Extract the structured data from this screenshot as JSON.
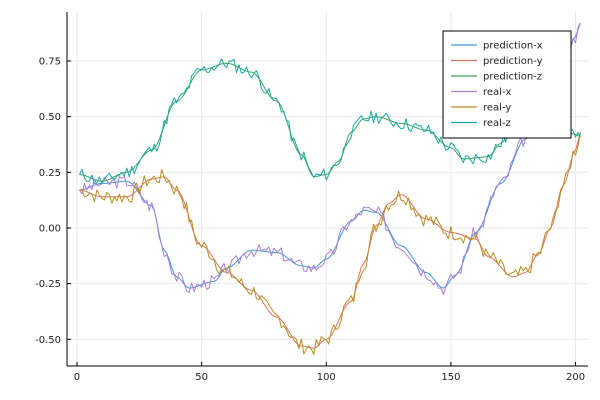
{
  "chart_data": {
    "type": "line",
    "title": "",
    "xlabel": "",
    "ylabel": "",
    "xlim": [
      -4,
      205
    ],
    "ylim": [
      -0.62,
      0.97
    ],
    "x_ticks": [
      {
        "value": 0,
        "label": "0"
      },
      {
        "value": 50,
        "label": "50"
      },
      {
        "value": 100,
        "label": "100"
      },
      {
        "value": 150,
        "label": "150"
      },
      {
        "value": 200,
        "label": "200"
      }
    ],
    "y_ticks": [
      {
        "value": -0.5,
        "label": "-0.50"
      },
      {
        "value": -0.25,
        "label": "-0.25"
      },
      {
        "value": 0.0,
        "label": "0.00"
      },
      {
        "value": 0.25,
        "label": "0.25"
      },
      {
        "value": 0.5,
        "label": "0.50"
      },
      {
        "value": 0.75,
        "label": "0.75"
      }
    ],
    "grid": true,
    "legend_position": "top-right",
    "series": [
      {
        "name": "prediction-x",
        "color": "#3a9ad9",
        "style": "smooth",
        "points": [
          [
            1,
            0.17
          ],
          [
            10,
            0.2
          ],
          [
            20,
            0.21
          ],
          [
            30,
            0.1
          ],
          [
            35,
            -0.1
          ],
          [
            40,
            -0.22
          ],
          [
            45,
            -0.27
          ],
          [
            55,
            -0.24
          ],
          [
            60,
            -0.18
          ],
          [
            70,
            -0.1
          ],
          [
            80,
            -0.11
          ],
          [
            90,
            -0.17
          ],
          [
            95,
            -0.18
          ],
          [
            100,
            -0.14
          ],
          [
            110,
            0.03
          ],
          [
            115,
            0.08
          ],
          [
            120,
            0.07
          ],
          [
            130,
            -0.08
          ],
          [
            140,
            -0.2
          ],
          [
            147,
            -0.27
          ],
          [
            152,
            -0.21
          ],
          [
            160,
            -0.02
          ],
          [
            170,
            0.2
          ],
          [
            180,
            0.4
          ],
          [
            190,
            0.58
          ],
          [
            195,
            0.72
          ],
          [
            200,
            0.86
          ],
          [
            202,
            0.92
          ]
        ]
      },
      {
        "name": "prediction-y",
        "color": "#e2725b",
        "style": "smooth",
        "points": [
          [
            1,
            0.17
          ],
          [
            10,
            0.14
          ],
          [
            20,
            0.14
          ],
          [
            30,
            0.22
          ],
          [
            35,
            0.23
          ],
          [
            40,
            0.17
          ],
          [
            50,
            -0.08
          ],
          [
            60,
            -0.2
          ],
          [
            70,
            -0.28
          ],
          [
            80,
            -0.4
          ],
          [
            90,
            -0.53
          ],
          [
            95,
            -0.54
          ],
          [
            100,
            -0.5
          ],
          [
            110,
            -0.33
          ],
          [
            115,
            -0.16
          ],
          [
            120,
            0.01
          ],
          [
            125,
            0.11
          ],
          [
            130,
            0.15
          ],
          [
            140,
            0.04
          ],
          [
            150,
            -0.02
          ],
          [
            160,
            -0.05
          ],
          [
            165,
            -0.13
          ],
          [
            175,
            -0.22
          ],
          [
            180,
            -0.2
          ],
          [
            185,
            -0.12
          ],
          [
            190,
            0.0
          ],
          [
            195,
            0.19
          ],
          [
            200,
            0.35
          ],
          [
            202,
            0.43
          ]
        ]
      },
      {
        "name": "prediction-z",
        "color": "#3aa65a",
        "style": "smooth",
        "points": [
          [
            1,
            0.24
          ],
          [
            10,
            0.21
          ],
          [
            20,
            0.25
          ],
          [
            30,
            0.35
          ],
          [
            40,
            0.57
          ],
          [
            50,
            0.71
          ],
          [
            60,
            0.74
          ],
          [
            70,
            0.7
          ],
          [
            80,
            0.57
          ],
          [
            90,
            0.33
          ],
          [
            95,
            0.23
          ],
          [
            100,
            0.24
          ],
          [
            105,
            0.3
          ],
          [
            110,
            0.43
          ],
          [
            115,
            0.49
          ],
          [
            120,
            0.5
          ],
          [
            130,
            0.47
          ],
          [
            140,
            0.44
          ],
          [
            150,
            0.36
          ],
          [
            155,
            0.31
          ],
          [
            165,
            0.32
          ],
          [
            170,
            0.38
          ],
          [
            175,
            0.45
          ],
          [
            180,
            0.48
          ],
          [
            185,
            0.49
          ],
          [
            190,
            0.48
          ],
          [
            195,
            0.44
          ],
          [
            200,
            0.42
          ],
          [
            202,
            0.41
          ]
        ]
      },
      {
        "name": "real-x",
        "color": "#b07cd6",
        "style": "jagged",
        "noise": 0.03,
        "seed": 3,
        "base": [
          [
            1,
            0.17
          ],
          [
            10,
            0.2
          ],
          [
            20,
            0.21
          ],
          [
            30,
            0.1
          ],
          [
            35,
            -0.1
          ],
          [
            40,
            -0.22
          ],
          [
            45,
            -0.27
          ],
          [
            55,
            -0.24
          ],
          [
            60,
            -0.18
          ],
          [
            70,
            -0.1
          ],
          [
            80,
            -0.11
          ],
          [
            90,
            -0.17
          ],
          [
            95,
            -0.18
          ],
          [
            100,
            -0.14
          ],
          [
            110,
            0.03
          ],
          [
            115,
            0.08
          ],
          [
            120,
            0.07
          ],
          [
            130,
            -0.08
          ],
          [
            140,
            -0.2
          ],
          [
            147,
            -0.27
          ],
          [
            152,
            -0.21
          ],
          [
            160,
            -0.02
          ],
          [
            170,
            0.2
          ],
          [
            180,
            0.4
          ],
          [
            190,
            0.58
          ],
          [
            195,
            0.72
          ],
          [
            200,
            0.86
          ],
          [
            202,
            0.92
          ]
        ]
      },
      {
        "name": "real-y",
        "color": "#b68d1f",
        "style": "jagged",
        "noise": 0.035,
        "seed": 7,
        "base": [
          [
            1,
            0.17
          ],
          [
            10,
            0.14
          ],
          [
            20,
            0.14
          ],
          [
            30,
            0.22
          ],
          [
            35,
            0.23
          ],
          [
            40,
            0.17
          ],
          [
            50,
            -0.08
          ],
          [
            60,
            -0.2
          ],
          [
            70,
            -0.28
          ],
          [
            80,
            -0.4
          ],
          [
            90,
            -0.53
          ],
          [
            95,
            -0.54
          ],
          [
            100,
            -0.5
          ],
          [
            110,
            -0.33
          ],
          [
            115,
            -0.16
          ],
          [
            120,
            0.01
          ],
          [
            125,
            0.11
          ],
          [
            130,
            0.15
          ],
          [
            140,
            0.04
          ],
          [
            150,
            -0.02
          ],
          [
            160,
            -0.05
          ],
          [
            165,
            -0.13
          ],
          [
            175,
            -0.22
          ],
          [
            180,
            -0.2
          ],
          [
            185,
            -0.12
          ],
          [
            190,
            0.0
          ],
          [
            195,
            0.19
          ],
          [
            200,
            0.35
          ],
          [
            202,
            0.43
          ]
        ]
      },
      {
        "name": "real-z",
        "color": "#1aa6a6",
        "style": "jagged",
        "noise": 0.03,
        "seed": 11,
        "base": [
          [
            1,
            0.24
          ],
          [
            10,
            0.21
          ],
          [
            20,
            0.25
          ],
          [
            30,
            0.35
          ],
          [
            40,
            0.57
          ],
          [
            50,
            0.71
          ],
          [
            60,
            0.74
          ],
          [
            70,
            0.7
          ],
          [
            80,
            0.57
          ],
          [
            90,
            0.33
          ],
          [
            95,
            0.23
          ],
          [
            100,
            0.24
          ],
          [
            105,
            0.3
          ],
          [
            110,
            0.43
          ],
          [
            115,
            0.49
          ],
          [
            120,
            0.5
          ],
          [
            130,
            0.47
          ],
          [
            140,
            0.44
          ],
          [
            150,
            0.36
          ],
          [
            155,
            0.31
          ],
          [
            165,
            0.32
          ],
          [
            170,
            0.38
          ],
          [
            175,
            0.45
          ],
          [
            180,
            0.48
          ],
          [
            185,
            0.49
          ],
          [
            190,
            0.48
          ],
          [
            195,
            0.44
          ],
          [
            200,
            0.42
          ],
          [
            202,
            0.41
          ]
        ]
      }
    ]
  }
}
